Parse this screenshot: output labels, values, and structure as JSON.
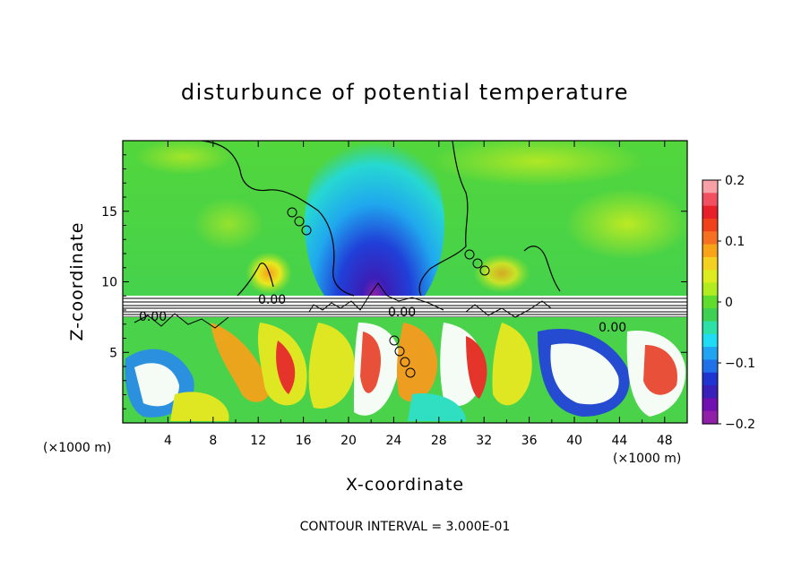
{
  "chart_data": {
    "type": "heatmap",
    "title": "disturbunce of potential temperature",
    "xlabel": "X-coordinate",
    "ylabel": "Z-coordinate",
    "x_unit": "(×1000 m)",
    "z_unit": "(×1000 m)",
    "xlim": [
      0,
      50
    ],
    "ylim": [
      0,
      20
    ],
    "x_ticks": [
      "4",
      "8",
      "12",
      "16",
      "20",
      "24",
      "28",
      "32",
      "36",
      "40",
      "44",
      "48"
    ],
    "y_ticks": [
      "5",
      "10",
      "15"
    ],
    "colorbar": {
      "min": -0.2,
      "max": 0.2,
      "ticks": [
        "0.2",
        "0.1",
        "0",
        "−0.1",
        "−0.2"
      ],
      "colors": [
        "#f7a1a7",
        "#f05060",
        "#e8202a",
        "#f0421a",
        "#f57020",
        "#f9a418",
        "#f4d020",
        "#dcec20",
        "#b0ec20",
        "#60dd2c",
        "#3ed052",
        "#2ce0a8",
        "#20dcf2",
        "#20a4f2",
        "#2070e8",
        "#2034d0",
        "#3820b8",
        "#7010b0",
        "#9020a8"
      ]
    },
    "contour_labels": [
      "0.00",
      "0.00",
      "0.00",
      "0.00"
    ],
    "contour_interval_label": "CONTOUR INTERVAL = 3.000E-01"
  }
}
